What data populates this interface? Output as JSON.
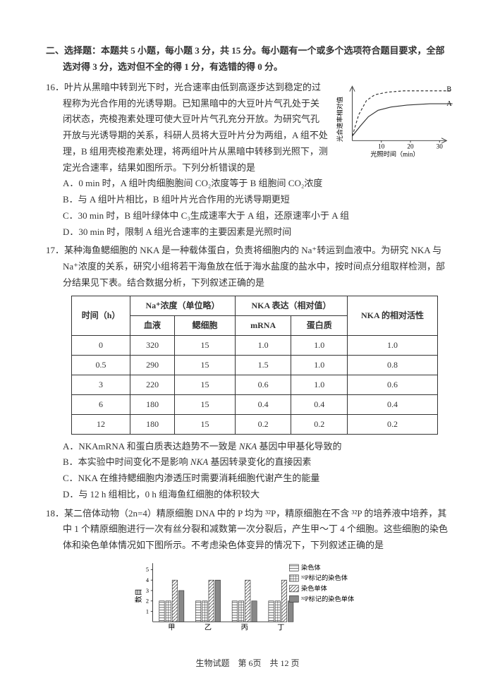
{
  "section_header": "二、选择题：本题共 5 小题，每小题 3 分，共 15 分。每小题有一个或多个选项符合题目要求，全部选对得 3 分，选对但不全的得 1 分，有选错的得 0 分。",
  "q16": {
    "num_text": "16．叶片从黑暗中转到光下时，光合速率由低到高逐步达到稳定的过程称为光合作用的光诱导期。已知黑暗中的大豆叶片气孔处于关闭状态，壳梭孢素处理可使大豆叶片气孔充分开放。为研究气孔开放与光诱导期的关系，科研人员将大豆叶片分为两组，A 组不处理，B 组用壳梭孢素处理，将两组叶片从黑暗中转移到光照下，测定光合速率，结果如图所示。下列分析错误的是",
    "optA": "A．0 min 时，A 组叶肉细胞胞间 CO₂浓度等于 B 组胞间 CO₂浓度",
    "optB": "B．与 A 组叶片相比，B 组叶片光合作用的光诱导期更短",
    "optC": "C．30 min 时，B 组叶绿体中 C₃生成速率大于 A 组，还原速率小于 A 组",
    "optD": "D．30 min 时，限制 A 组光合速率的主要因素是光照时间",
    "chart": {
      "y_label": "光合速率相对值",
      "x_label": "光照时间（min）",
      "labelA": "A",
      "labelB": "B",
      "x_ticks": [
        "10",
        "20",
        "30"
      ],
      "curveB": [
        [
          0,
          85
        ],
        [
          10,
          52
        ],
        [
          22,
          30
        ],
        [
          35,
          21
        ],
        [
          55,
          17
        ],
        [
          80,
          15
        ],
        [
          120,
          15
        ],
        [
          155,
          15
        ]
      ],
      "curveA": [
        [
          0,
          85
        ],
        [
          12,
          70
        ],
        [
          25,
          55
        ],
        [
          40,
          45
        ],
        [
          60,
          40
        ],
        [
          85,
          37
        ],
        [
          120,
          35
        ],
        [
          155,
          35
        ]
      ],
      "axis_color": "#333",
      "curve_color": "#333",
      "bg": "#fff",
      "dash": "4,3"
    }
  },
  "q17": {
    "num_text": "17．某种海鱼鳃细胞的 NKA 是一种载体蛋白，负责将细胞内的 Na⁺转运到血液中。为研究 NKA 与 Na⁺浓度的关系，研究小组将若干海鱼放在低于海水盐度的盐水中，按时间点分组取样检测，部分结果见下表。结合数据分析，下列叙述正确的是",
    "table": {
      "head_time": "时间（h）",
      "head_na": "Na⁺浓度（单位略）",
      "head_nka": "NKA 表达（相对值）",
      "head_act": "NKA 的相对活性",
      "sub_blood": "血液",
      "sub_gill": "鳃细胞",
      "sub_mrna": "mRNA",
      "sub_prot": "蛋白质",
      "rows": [
        [
          "0",
          "320",
          "15",
          "1.0",
          "1.0",
          "1.0"
        ],
        [
          "0.5",
          "290",
          "15",
          "1.5",
          "1.0",
          "0.8"
        ],
        [
          "3",
          "220",
          "15",
          "0.6",
          "1.0",
          "0.6"
        ],
        [
          "6",
          "180",
          "15",
          "0.4",
          "0.4",
          "0.4"
        ],
        [
          "12",
          "180",
          "15",
          "0.2",
          "0.2",
          "0.2"
        ]
      ]
    },
    "optA_pre": "A．NKAmRNA 和蛋白质表达趋势不一致是 ",
    "optA_it": "NKA",
    "optA_post": " 基因中甲基化导致的",
    "optB_pre": "B．本实验中时间变化不是影响 ",
    "optB_it": "NKA",
    "optB_post": " 基因转录变化的直接因素",
    "optC": "C．NKA 在维持鳃细胞内渗透压时需要消耗细胞代谢产生的能量",
    "optD": "D．与 12 h 组相比，0 h 组海鱼红细胞的体积较大"
  },
  "q18": {
    "num_text": "18．某二倍体动物（2n=4）精原细胞 DNA 中的 P 均为 ³²P，精原细胞在不含 ³²P 的培养液中培养，其中 1 个精原细胞进行一次有丝分裂和减数第一次分裂后，产生甲～丁 4 个细胞。这些细胞的染色体和染色单体情况如下图所示。不考虑染色体变异的情况下，下列叙述正确的是",
    "chart": {
      "y_label": "数目",
      "y_ticks": [
        "1",
        "2",
        "3",
        "4",
        "5"
      ],
      "x_cats": [
        "甲",
        "乙",
        "丙",
        "丁"
      ],
      "legend": [
        "染色体",
        "³²P标记的染色体",
        "染色单体",
        "³²P标记的染色单体"
      ],
      "colors": [
        "#ffffff",
        "#ffffff",
        "#ffffff",
        "#888888"
      ],
      "hatch": [
        "horiz",
        "grid",
        "diag",
        "solid"
      ],
      "data": {
        "甲": [
          2,
          2,
          4,
          3
        ],
        "乙": [
          2,
          2,
          4,
          4
        ],
        "丙": [
          2,
          2,
          4,
          2
        ],
        "丁": [
          2,
          2,
          4,
          2
        ]
      }
    }
  },
  "footer": "生物试题　第 6页　共 12 页"
}
